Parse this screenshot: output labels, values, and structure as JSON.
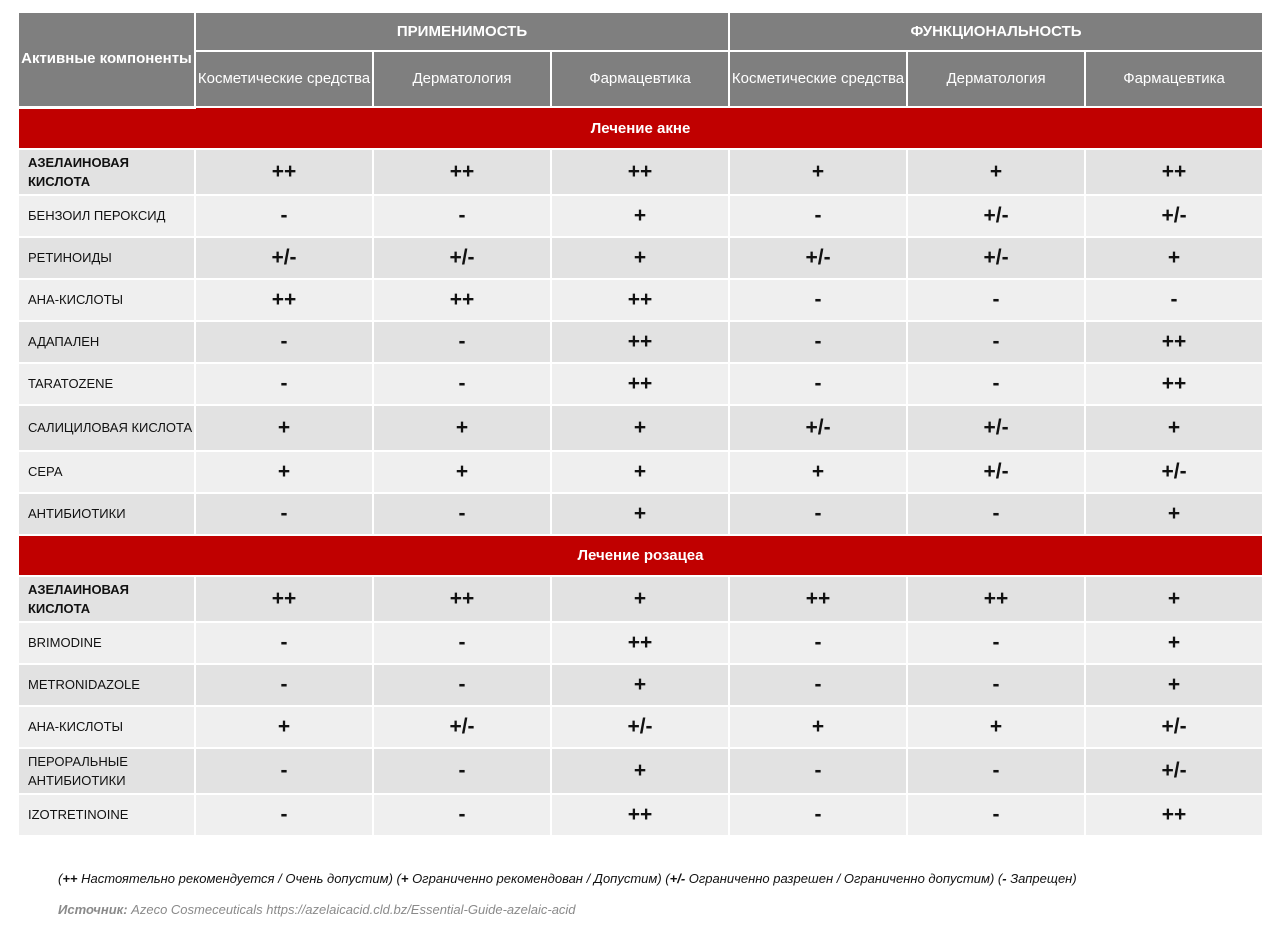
{
  "header": {
    "components": "Активные компоненты",
    "group1": "ПРИМЕНИМОСТЬ",
    "group2": "ФУНКЦИОНАЛЬНОСТЬ",
    "columns": [
      "Косметические средства",
      "Дерматология",
      "Фармацевтика",
      "Косметические средства",
      "Дерматология",
      "Фармацевтика"
    ]
  },
  "sections": [
    {
      "title": "Лечение акне",
      "rows": [
        {
          "name": "АЗЕЛАИНОВАЯ КИСЛОТА",
          "bold": true,
          "values": [
            "++",
            "++",
            "++",
            "+",
            "+",
            "++"
          ]
        },
        {
          "name": "БЕНЗОИЛ ПЕРОКСИД",
          "values": [
            "-",
            "-",
            "+",
            "-",
            "+/-",
            "+/-"
          ]
        },
        {
          "name": "РЕТИНОИДЫ",
          "values": [
            "+/-",
            "+/-",
            "+",
            "+/-",
            "+/-",
            "+"
          ]
        },
        {
          "name": "АНА-КИСЛОТЫ",
          "values": [
            "++",
            "++",
            "++",
            "-",
            "-",
            "-"
          ]
        },
        {
          "name": "АДАПАЛЕН",
          "values": [
            "-",
            "-",
            "++",
            "-",
            "-",
            "++"
          ]
        },
        {
          "name": "TARATOZENE",
          "values": [
            "-",
            "-",
            "++",
            "-",
            "-",
            "++"
          ]
        },
        {
          "name": "САЛИЦИЛОВАЯ КИСЛОТА",
          "values": [
            "+",
            "+",
            "+",
            "+/-",
            "+/-",
            "+"
          ]
        },
        {
          "name": "СЕРА",
          "values": [
            "+",
            "+",
            "+",
            "+",
            "+/-",
            "+/-"
          ]
        },
        {
          "name": "АНТИБИОТИКИ",
          "values": [
            "-",
            "-",
            "+",
            "-",
            "-",
            "+"
          ]
        }
      ]
    },
    {
      "title": "Лечение розацеа",
      "rows": [
        {
          "name": "АЗЕЛАИНОВАЯ КИСЛОТА",
          "bold": true,
          "values": [
            "++",
            "++",
            "+",
            "++",
            "++",
            "+"
          ]
        },
        {
          "name": "BRIMODINE",
          "values": [
            "-",
            "-",
            "++",
            "-",
            "-",
            "+"
          ]
        },
        {
          "name": "METRONIDAZOLE",
          "values": [
            "-",
            "-",
            "+",
            "-",
            "-",
            "+"
          ]
        },
        {
          "name": "АНА-КИСЛОТЫ",
          "values": [
            "+",
            "+/-",
            "+/-",
            "+",
            "+",
            "+/-"
          ]
        },
        {
          "name": "ПЕРОРАЛЬНЫЕ АНТИБИОТИКИ",
          "values": [
            "-",
            "-",
            "+",
            "-",
            "-",
            "+/-"
          ]
        },
        {
          "name": "IZOTRETINOINE",
          "values": [
            "-",
            "-",
            "++",
            "-",
            "-",
            "++"
          ]
        }
      ]
    }
  ],
  "legend": [
    {
      "sym": "++",
      "text": " Настоятельно рекомендуется / Очень допустим"
    },
    {
      "sym": "+",
      "text": " Ограниченно рекомендован / Допустим"
    },
    {
      "sym": "+/-",
      "text": " Ограниченно разрешен / Ограниченно допустим"
    },
    {
      "sym": "-",
      "text": " Запрещен"
    }
  ],
  "source": {
    "label": "Источник:",
    "text": " Azeco Cosmeceuticals https://azelaicacid.cld.bz/Essential-Guide-azelaic-acid"
  },
  "colors": {
    "header": "#7f7f7f",
    "band": "#c00000",
    "row_dark": "#e2e2e2",
    "row_light": "#efefef"
  }
}
